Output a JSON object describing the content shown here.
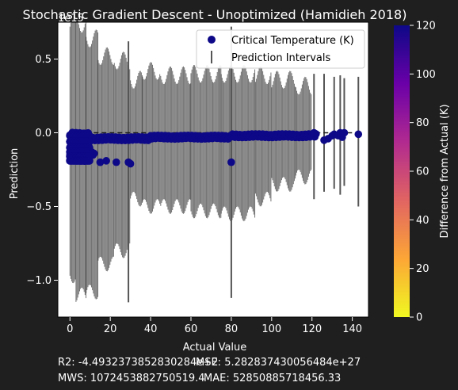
{
  "chart_data": {
    "type": "scatter",
    "title": "Stochastic Gradient Descent - Unoptimized (Hamidieh 2018)",
    "xlabel": "Actual Value",
    "ylabel": "Prediction",
    "offset_text": "1e15",
    "xlim": [
      -6,
      148
    ],
    "ylim": [
      -1.25,
      0.75
    ],
    "xticks": [
      0,
      20,
      40,
      60,
      80,
      100,
      120,
      140
    ],
    "xtick_labels": [
      "0",
      "20",
      "40",
      "60",
      "80",
      "100",
      "120",
      "140"
    ],
    "yticks": [
      0.5,
      0.0,
      -0.5,
      -1.0
    ],
    "ytick_labels": [
      "0.5",
      "0.0",
      "−0.5",
      "−1.0"
    ],
    "legend": {
      "placement": "top-right",
      "entries": [
        "Critical Temperature (K)",
        "Prediction Intervals"
      ]
    },
    "colorbar": {
      "label": "Difference from Actual (K)",
      "range": [
        0,
        120
      ],
      "ticks": [
        0,
        20,
        40,
        60,
        80,
        100,
        120
      ],
      "colors": [
        "#f0f921",
        "#fca636",
        "#e16462",
        "#b12a90",
        "#6a00a8",
        "#0d0887"
      ]
    },
    "point_color": "#0d0887",
    "interval_color": "#000000",
    "reference_line_color": "#1a1a1a",
    "point_segments": [
      {
        "x0": 0,
        "x1": 10,
        "y": -0.01
      },
      {
        "x0": 0,
        "x1": 12,
        "y": -0.14
      },
      {
        "x0": 0,
        "x1": 8,
        "y": -0.18
      },
      {
        "x0": 10,
        "x1": 40,
        "y": -0.04
      },
      {
        "x0": 40,
        "x1": 80,
        "y": -0.03
      },
      {
        "x0": 80,
        "x1": 122,
        "y": -0.02
      }
    ],
    "points": [
      {
        "x": 15,
        "y": -0.2
      },
      {
        "x": 18,
        "y": -0.19
      },
      {
        "x": 23,
        "y": -0.2
      },
      {
        "x": 29,
        "y": -0.2
      },
      {
        "x": 30,
        "y": -0.21
      },
      {
        "x": 80,
        "y": -0.2
      },
      {
        "x": 105,
        "y": -0.01
      },
      {
        "x": 112,
        "y": -0.02
      },
      {
        "x": 117,
        "y": -0.03
      },
      {
        "x": 121,
        "y": 0.0
      },
      {
        "x": 126,
        "y": -0.05
      },
      {
        "x": 128,
        "y": -0.04
      },
      {
        "x": 130,
        "y": -0.02
      },
      {
        "x": 131,
        "y": -0.01
      },
      {
        "x": 133,
        "y": -0.02
      },
      {
        "x": 134,
        "y": 0.0
      },
      {
        "x": 135,
        "y": -0.03
      },
      {
        "x": 136,
        "y": 0.0
      },
      {
        "x": 143,
        "y": -0.01
      }
    ],
    "interval_bands": [
      {
        "x0": 0,
        "x1": 3,
        "low": -1.02,
        "high": 0.78
      },
      {
        "x0": 3,
        "x1": 8,
        "low": -1.15,
        "high": 0.8
      },
      {
        "x0": 8,
        "x1": 14,
        "low": -1.13,
        "high": 0.7
      },
      {
        "x0": 14,
        "x1": 22,
        "low": -0.94,
        "high": 0.58
      },
      {
        "x0": 22,
        "x1": 30,
        "low": -0.85,
        "high": 0.55
      },
      {
        "x0": 30,
        "x1": 36,
        "low": -0.5,
        "high": 0.42
      },
      {
        "x0": 36,
        "x1": 45,
        "low": -0.55,
        "high": 0.48
      },
      {
        "x0": 45,
        "x1": 60,
        "low": -0.55,
        "high": 0.45
      },
      {
        "x0": 60,
        "x1": 75,
        "low": -0.58,
        "high": 0.46
      },
      {
        "x0": 75,
        "x1": 92,
        "low": -0.6,
        "high": 0.46
      },
      {
        "x0": 92,
        "x1": 100,
        "low": -0.5,
        "high": 0.45
      },
      {
        "x0": 100,
        "x1": 112,
        "low": -0.4,
        "high": 0.42
      },
      {
        "x0": 112,
        "x1": 120,
        "low": -0.35,
        "high": 0.38
      }
    ],
    "interval_spikes": [
      {
        "x": 29,
        "low": -1.15,
        "high": 0.62
      },
      {
        "x": 80,
        "low": -1.12,
        "high": 0.72
      },
      {
        "x": 121,
        "low": -0.45,
        "high": 0.4
      },
      {
        "x": 126,
        "low": -0.4,
        "high": 0.4
      },
      {
        "x": 131,
        "low": -0.38,
        "high": 0.38
      },
      {
        "x": 134,
        "low": -0.42,
        "high": 0.39
      },
      {
        "x": 136,
        "low": -0.36,
        "high": 0.37
      },
      {
        "x": 143,
        "low": -0.5,
        "high": 0.38
      }
    ]
  },
  "metrics": {
    "r2": "R2: -4.4932373852830284e+2",
    "mse": "MSE: 5.282837430056484e+27",
    "mws": "MWS: 1072453882750519.4",
    "mae": "MAE: 52850885718456.33"
  }
}
